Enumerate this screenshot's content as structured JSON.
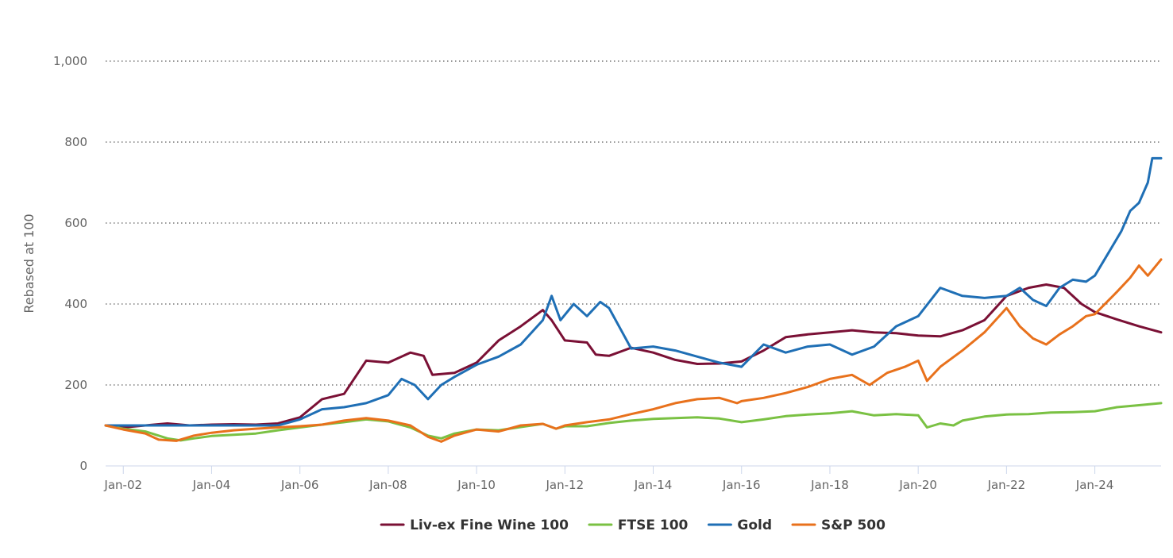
{
  "chart_data": {
    "type": "line",
    "title": "",
    "xlabel": "",
    "ylabel": "Rebased at 100",
    "ylim": [
      0,
      1000
    ],
    "yticks": [
      0,
      200,
      400,
      600,
      800,
      1000
    ],
    "ytick_labels": [
      "0",
      "200",
      "400",
      "600",
      "800",
      "1,000"
    ],
    "xlim": [
      2001.6,
      2025.5
    ],
    "xticks": [
      2002,
      2004,
      2006,
      2008,
      2010,
      2012,
      2014,
      2016,
      2018,
      2020,
      2022,
      2024
    ],
    "xtick_labels": [
      "Jan-02",
      "Jan-04",
      "Jan-06",
      "Jan-08",
      "Jan-10",
      "Jan-12",
      "Jan-14",
      "Jan-16",
      "Jan-18",
      "Jan-20",
      "Jan-22",
      "Jan-24"
    ],
    "grid": true,
    "legend_position": "bottom-center",
    "series": [
      {
        "name": "Liv-ex Fine Wine 100",
        "color": "#7a1035",
        "points": [
          [
            2001.6,
            100
          ],
          [
            2002.0,
            95
          ],
          [
            2002.5,
            100
          ],
          [
            2003.0,
            105
          ],
          [
            2003.5,
            100
          ],
          [
            2004.0,
            102
          ],
          [
            2004.5,
            103
          ],
          [
            2005.0,
            102
          ],
          [
            2005.5,
            105
          ],
          [
            2006.0,
            120
          ],
          [
            2006.5,
            165
          ],
          [
            2007.0,
            178
          ],
          [
            2007.5,
            260
          ],
          [
            2008.0,
            255
          ],
          [
            2008.5,
            280
          ],
          [
            2008.8,
            272
          ],
          [
            2009.0,
            225
          ],
          [
            2009.5,
            230
          ],
          [
            2010.0,
            255
          ],
          [
            2010.5,
            310
          ],
          [
            2011.0,
            345
          ],
          [
            2011.5,
            385
          ],
          [
            2011.7,
            360
          ],
          [
            2012.0,
            310
          ],
          [
            2012.5,
            305
          ],
          [
            2012.7,
            275
          ],
          [
            2013.0,
            272
          ],
          [
            2013.5,
            292
          ],
          [
            2014.0,
            280
          ],
          [
            2014.5,
            262
          ],
          [
            2015.0,
            252
          ],
          [
            2015.5,
            253
          ],
          [
            2016.0,
            258
          ],
          [
            2016.5,
            285
          ],
          [
            2017.0,
            318
          ],
          [
            2017.5,
            325
          ],
          [
            2018.0,
            330
          ],
          [
            2018.5,
            335
          ],
          [
            2019.0,
            330
          ],
          [
            2019.5,
            328
          ],
          [
            2020.0,
            322
          ],
          [
            2020.5,
            320
          ],
          [
            2021.0,
            335
          ],
          [
            2021.5,
            360
          ],
          [
            2022.0,
            420
          ],
          [
            2022.5,
            440
          ],
          [
            2022.9,
            448
          ],
          [
            2023.3,
            440
          ],
          [
            2023.7,
            400
          ],
          [
            2024.0,
            380
          ],
          [
            2024.5,
            362
          ],
          [
            2025.0,
            345
          ],
          [
            2025.5,
            330
          ]
        ]
      },
      {
        "name": "FTSE 100",
        "color": "#7ac143",
        "points": [
          [
            2001.6,
            100
          ],
          [
            2002.0,
            92
          ],
          [
            2002.5,
            85
          ],
          [
            2003.0,
            68
          ],
          [
            2003.3,
            63
          ],
          [
            2003.6,
            68
          ],
          [
            2004.0,
            74
          ],
          [
            2004.5,
            77
          ],
          [
            2005.0,
            80
          ],
          [
            2005.5,
            88
          ],
          [
            2006.0,
            95
          ],
          [
            2006.5,
            102
          ],
          [
            2007.0,
            108
          ],
          [
            2007.5,
            115
          ],
          [
            2008.0,
            110
          ],
          [
            2008.5,
            95
          ],
          [
            2008.9,
            75
          ],
          [
            2009.2,
            68
          ],
          [
            2009.5,
            80
          ],
          [
            2010.0,
            90
          ],
          [
            2010.5,
            88
          ],
          [
            2011.0,
            96
          ],
          [
            2011.5,
            104
          ],
          [
            2011.8,
            92
          ],
          [
            2012.0,
            98
          ],
          [
            2012.5,
            98
          ],
          [
            2013.0,
            106
          ],
          [
            2013.5,
            112
          ],
          [
            2014.0,
            116
          ],
          [
            2014.5,
            118
          ],
          [
            2015.0,
            120
          ],
          [
            2015.5,
            117
          ],
          [
            2016.0,
            108
          ],
          [
            2016.5,
            115
          ],
          [
            2017.0,
            123
          ],
          [
            2017.5,
            127
          ],
          [
            2018.0,
            130
          ],
          [
            2018.5,
            135
          ],
          [
            2019.0,
            125
          ],
          [
            2019.5,
            128
          ],
          [
            2020.0,
            125
          ],
          [
            2020.2,
            95
          ],
          [
            2020.5,
            105
          ],
          [
            2020.8,
            100
          ],
          [
            2021.0,
            112
          ],
          [
            2021.5,
            122
          ],
          [
            2022.0,
            127
          ],
          [
            2022.5,
            128
          ],
          [
            2023.0,
            132
          ],
          [
            2023.5,
            133
          ],
          [
            2024.0,
            135
          ],
          [
            2024.5,
            145
          ],
          [
            2025.0,
            150
          ],
          [
            2025.5,
            155
          ]
        ]
      },
      {
        "name": "Gold",
        "color": "#1f6fb5",
        "points": [
          [
            2001.6,
            100
          ],
          [
            2002.0,
            100
          ],
          [
            2002.5,
            100
          ],
          [
            2003.0,
            100
          ],
          [
            2003.5,
            100
          ],
          [
            2004.0,
            100
          ],
          [
            2004.5,
            100
          ],
          [
            2005.0,
            100
          ],
          [
            2005.5,
            100
          ],
          [
            2006.0,
            115
          ],
          [
            2006.5,
            140
          ],
          [
            2007.0,
            145
          ],
          [
            2007.5,
            155
          ],
          [
            2008.0,
            175
          ],
          [
            2008.3,
            215
          ],
          [
            2008.6,
            200
          ],
          [
            2008.9,
            165
          ],
          [
            2009.2,
            200
          ],
          [
            2009.5,
            220
          ],
          [
            2010.0,
            250
          ],
          [
            2010.5,
            270
          ],
          [
            2011.0,
            300
          ],
          [
            2011.5,
            360
          ],
          [
            2011.7,
            420
          ],
          [
            2011.9,
            360
          ],
          [
            2012.2,
            400
          ],
          [
            2012.5,
            370
          ],
          [
            2012.8,
            405
          ],
          [
            2013.0,
            390
          ],
          [
            2013.3,
            330
          ],
          [
            2013.5,
            290
          ],
          [
            2014.0,
            295
          ],
          [
            2014.5,
            285
          ],
          [
            2015.0,
            270
          ],
          [
            2015.5,
            255
          ],
          [
            2016.0,
            245
          ],
          [
            2016.5,
            300
          ],
          [
            2017.0,
            280
          ],
          [
            2017.5,
            295
          ],
          [
            2018.0,
            300
          ],
          [
            2018.5,
            275
          ],
          [
            2019.0,
            295
          ],
          [
            2019.5,
            345
          ],
          [
            2020.0,
            370
          ],
          [
            2020.5,
            440
          ],
          [
            2021.0,
            420
          ],
          [
            2021.5,
            415
          ],
          [
            2022.0,
            420
          ],
          [
            2022.3,
            440
          ],
          [
            2022.6,
            410
          ],
          [
            2022.9,
            395
          ],
          [
            2023.2,
            440
          ],
          [
            2023.5,
            460
          ],
          [
            2023.8,
            455
          ],
          [
            2024.0,
            470
          ],
          [
            2024.3,
            525
          ],
          [
            2024.6,
            580
          ],
          [
            2024.8,
            630
          ],
          [
            2025.0,
            650
          ],
          [
            2025.2,
            700
          ],
          [
            2025.3,
            760
          ],
          [
            2025.5,
            760
          ]
        ]
      },
      {
        "name": "S&P 500",
        "color": "#e8711c",
        "points": [
          [
            2001.6,
            100
          ],
          [
            2002.0,
            90
          ],
          [
            2002.5,
            80
          ],
          [
            2002.8,
            65
          ],
          [
            2003.2,
            62
          ],
          [
            2003.6,
            75
          ],
          [
            2004.0,
            82
          ],
          [
            2004.5,
            88
          ],
          [
            2005.0,
            92
          ],
          [
            2005.5,
            95
          ],
          [
            2006.0,
            98
          ],
          [
            2006.5,
            102
          ],
          [
            2007.0,
            112
          ],
          [
            2007.5,
            118
          ],
          [
            2008.0,
            112
          ],
          [
            2008.5,
            100
          ],
          [
            2008.9,
            72
          ],
          [
            2009.2,
            60
          ],
          [
            2009.5,
            75
          ],
          [
            2010.0,
            90
          ],
          [
            2010.5,
            85
          ],
          [
            2011.0,
            100
          ],
          [
            2011.5,
            104
          ],
          [
            2011.8,
            92
          ],
          [
            2012.0,
            100
          ],
          [
            2012.5,
            108
          ],
          [
            2013.0,
            115
          ],
          [
            2013.5,
            128
          ],
          [
            2014.0,
            140
          ],
          [
            2014.5,
            155
          ],
          [
            2015.0,
            165
          ],
          [
            2015.5,
            168
          ],
          [
            2015.9,
            155
          ],
          [
            2016.0,
            160
          ],
          [
            2016.5,
            168
          ],
          [
            2017.0,
            180
          ],
          [
            2017.5,
            195
          ],
          [
            2018.0,
            215
          ],
          [
            2018.5,
            225
          ],
          [
            2018.9,
            200
          ],
          [
            2019.3,
            230
          ],
          [
            2019.7,
            245
          ],
          [
            2020.0,
            260
          ],
          [
            2020.2,
            210
          ],
          [
            2020.5,
            245
          ],
          [
            2021.0,
            285
          ],
          [
            2021.5,
            330
          ],
          [
            2022.0,
            390
          ],
          [
            2022.3,
            345
          ],
          [
            2022.6,
            315
          ],
          [
            2022.9,
            300
          ],
          [
            2023.2,
            325
          ],
          [
            2023.5,
            345
          ],
          [
            2023.8,
            370
          ],
          [
            2024.0,
            375
          ],
          [
            2024.5,
            430
          ],
          [
            2024.8,
            465
          ],
          [
            2025.0,
            495
          ],
          [
            2025.2,
            470
          ],
          [
            2025.5,
            510
          ]
        ]
      }
    ]
  }
}
